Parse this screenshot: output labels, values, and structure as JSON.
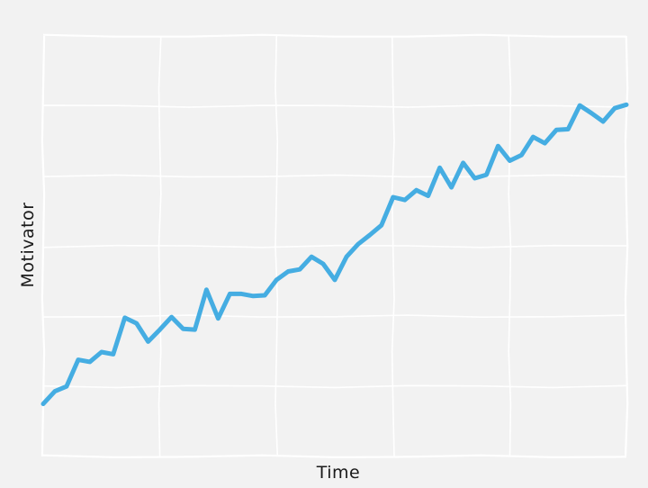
{
  "chart_data": {
    "type": "line",
    "title": "",
    "xlabel": "Time",
    "ylabel": "Motivator",
    "xlim": [
      0,
      50
    ],
    "ylim": [
      0,
      6
    ],
    "grid": true,
    "tick_labels_visible": false,
    "colors": {
      "series": "#45ade2",
      "background": "#f2f2f2",
      "grid": "#ffffff"
    },
    "series": [
      {
        "x": [
          0,
          1,
          2,
          3,
          4,
          5,
          6,
          7,
          8,
          9,
          10,
          11,
          12,
          13,
          14,
          15,
          16,
          17,
          18,
          19,
          20,
          21,
          22,
          23,
          24,
          25,
          26,
          27,
          28,
          29,
          30,
          31,
          32,
          33,
          34,
          35,
          36,
          37,
          38,
          39,
          40,
          41,
          42,
          43,
          44,
          45,
          46,
          47,
          48,
          49,
          50
        ],
        "y": [
          0.75,
          0.93,
          1.0,
          1.38,
          1.35,
          1.49,
          1.46,
          1.98,
          1.9,
          1.64,
          1.81,
          1.99,
          1.82,
          1.81,
          2.38,
          1.97,
          2.32,
          2.32,
          2.29,
          2.3,
          2.52,
          2.64,
          2.67,
          2.85,
          2.75,
          2.52,
          2.85,
          3.03,
          3.16,
          3.3,
          3.7,
          3.66,
          3.8,
          3.72,
          4.12,
          3.84,
          4.19,
          3.97,
          4.02,
          4.43,
          4.22,
          4.3,
          4.56,
          4.47,
          4.66,
          4.67,
          5.01,
          4.9,
          4.78,
          4.97,
          5.02
        ]
      }
    ]
  }
}
